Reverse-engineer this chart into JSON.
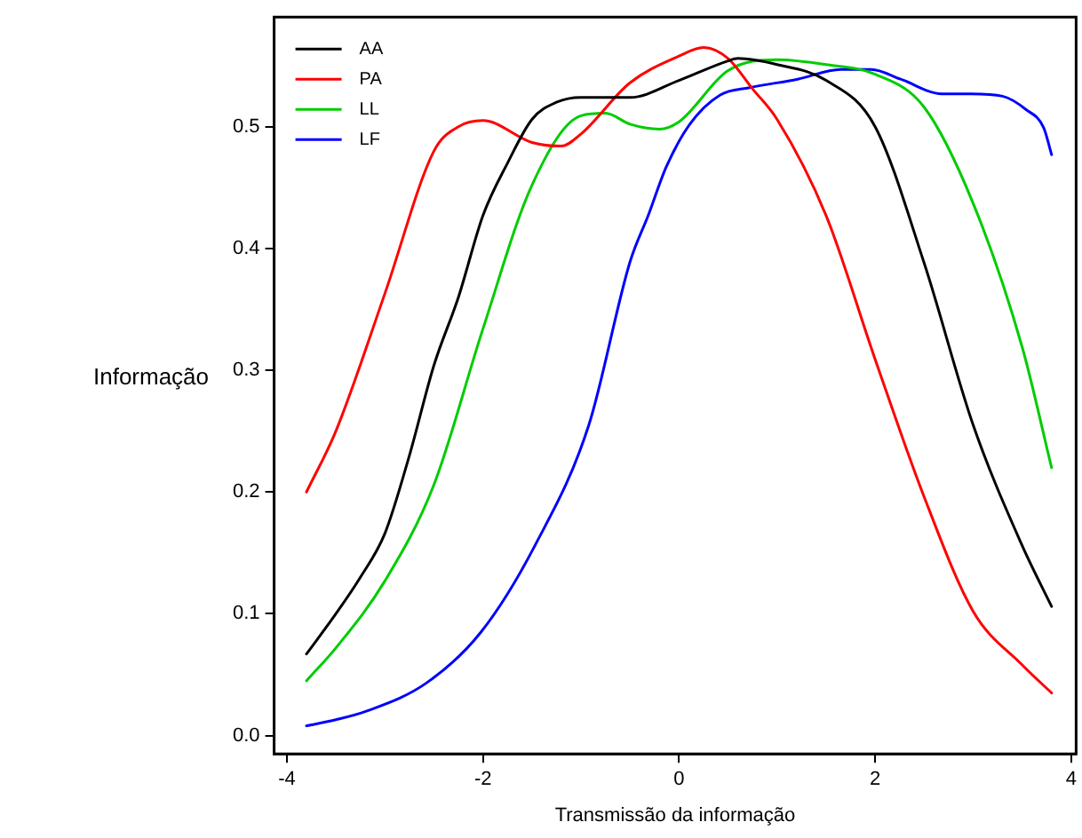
{
  "chart_data": {
    "type": "line",
    "xlabel": "Transmissão da informação",
    "ylabel": "Informação",
    "xlim": [
      -4.13,
      4.05
    ],
    "ylim": [
      -0.015,
      0.59
    ],
    "xticks": [
      -4,
      -2,
      0,
      2,
      4
    ],
    "yticks": [
      {
        "value": 0,
        "label": "0.0"
      },
      {
        "value": 0.1,
        "label": "0.1"
      },
      {
        "value": 0.2,
        "label": "0.2"
      },
      {
        "value": 0.3,
        "label": "0.3"
      },
      {
        "value": 0.4,
        "label": "0.4"
      },
      {
        "value": 0.5,
        "label": "0.5"
      }
    ],
    "grid": false,
    "legend": "top left",
    "marker": "none",
    "line_style": "solid",
    "series": [
      {
        "name": "AA",
        "color": "#000000",
        "x": [
          -3.8,
          -3.5,
          -3.25,
          -3,
          -2.75,
          -2.5,
          -2.25,
          -2,
          -1.75,
          -1.5,
          -1.25,
          -1,
          -0.5,
          0,
          0.5,
          0.6,
          1,
          1.5,
          2,
          2.5,
          3,
          3.5,
          3.8
        ],
        "values": [
          0.067,
          0.1,
          0.13,
          0.166,
          0.23,
          0.304,
          0.36,
          0.427,
          0.47,
          0.506,
          0.52,
          0.524,
          0.524,
          0.538,
          0.554,
          0.556,
          0.551,
          0.538,
          0.5,
          0.388,
          0.255,
          0.156,
          0.106
        ]
      },
      {
        "name": "PA",
        "color": "#ff0000",
        "x": [
          -3.8,
          -3.5,
          -3,
          -2.5,
          -2.25,
          -2,
          -1.5,
          -1.2,
          -1,
          -0.5,
          0,
          0.25,
          0.5,
          0.75,
          1,
          1.5,
          2,
          2.5,
          3,
          3.5,
          3.8
        ],
        "values": [
          0.2,
          0.25,
          0.363,
          0.48,
          0.5,
          0.505,
          0.487,
          0.484,
          0.494,
          0.536,
          0.558,
          0.565,
          0.556,
          0.531,
          0.506,
          0.427,
          0.309,
          0.196,
          0.102,
          0.058,
          0.035
        ]
      },
      {
        "name": "LL",
        "color": "#00cc00",
        "x": [
          -3.8,
          -3.5,
          -3,
          -2.5,
          -2,
          -1.5,
          -1,
          -0.75,
          -0.5,
          -0.2,
          0,
          0.5,
          1,
          1.5,
          2,
          2.5,
          3,
          3.5,
          3.8
        ],
        "values": [
          0.045,
          0.072,
          0.127,
          0.206,
          0.334,
          0.452,
          0.509,
          0.511,
          0.502,
          0.498,
          0.504,
          0.546,
          0.555,
          0.551,
          0.543,
          0.516,
          0.437,
          0.319,
          0.22
        ]
      },
      {
        "name": "LF",
        "color": "#0000ff",
        "x": [
          -3.8,
          -3.5,
          -3.19,
          -2.58,
          -2.02,
          -1.47,
          -0.92,
          -0.5,
          -0.31,
          -0.13,
          0.11,
          0.42,
          0.72,
          1.21,
          1.65,
          1.96,
          2.26,
          2.68,
          2.98,
          3.3,
          3.54,
          3.72,
          3.8
        ],
        "values": [
          0.008,
          0.013,
          0.02,
          0.043,
          0.085,
          0.156,
          0.255,
          0.389,
          0.428,
          0.467,
          0.502,
          0.526,
          0.532,
          0.539,
          0.547,
          0.547,
          0.539,
          0.527,
          0.527,
          0.525,
          0.514,
          0.499,
          0.477
        ]
      }
    ]
  }
}
